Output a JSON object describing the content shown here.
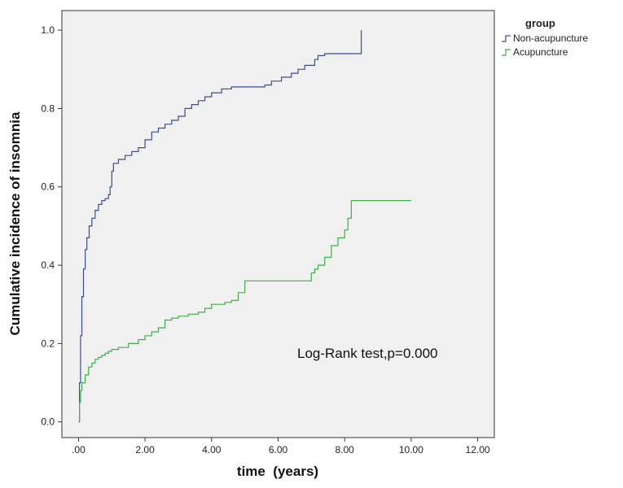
{
  "chart_data": {
    "type": "line",
    "xlabel": "time  (years)",
    "ylabel": "Cumulative incidence of insomnia",
    "xlim": [
      -0.5,
      12.5
    ],
    "ylim": [
      -0.04,
      1.05
    ],
    "x_ticks": [
      0,
      2,
      4,
      6,
      8,
      10,
      12
    ],
    "x_tick_labels": [
      ".00",
      "2.00",
      "4.00",
      "6.00",
      "8.00",
      "10.00",
      "12.00"
    ],
    "y_ticks": [
      0,
      0.2,
      0.4,
      0.6,
      0.8,
      1.0
    ],
    "y_tick_labels": [
      "0.0",
      "0.2",
      "0.4",
      "0.6",
      "0.8",
      "1.0"
    ],
    "grid": false,
    "legend_title": "group",
    "legend_position": "outside-top-right",
    "annotation": "Log-Rank test,p=0.000",
    "series": [
      {
        "name": "Non-acupuncture",
        "color": "#3c4d8e",
        "points": [
          [
            0,
            0
          ],
          [
            0.03,
            0.1
          ],
          [
            0.06,
            0.22
          ],
          [
            0.1,
            0.32
          ],
          [
            0.15,
            0.39
          ],
          [
            0.2,
            0.44
          ],
          [
            0.25,
            0.47
          ],
          [
            0.32,
            0.5
          ],
          [
            0.4,
            0.52
          ],
          [
            0.5,
            0.54
          ],
          [
            0.6,
            0.555
          ],
          [
            0.7,
            0.565
          ],
          [
            0.8,
            0.57
          ],
          [
            0.9,
            0.58
          ],
          [
            0.95,
            0.6
          ],
          [
            1.0,
            0.64
          ],
          [
            1.05,
            0.66
          ],
          [
            1.2,
            0.67
          ],
          [
            1.4,
            0.68
          ],
          [
            1.6,
            0.69
          ],
          [
            1.8,
            0.7
          ],
          [
            2.0,
            0.72
          ],
          [
            2.2,
            0.74
          ],
          [
            2.4,
            0.75
          ],
          [
            2.6,
            0.76
          ],
          [
            2.8,
            0.77
          ],
          [
            3.0,
            0.78
          ],
          [
            3.2,
            0.8
          ],
          [
            3.4,
            0.81
          ],
          [
            3.6,
            0.82
          ],
          [
            3.8,
            0.83
          ],
          [
            4.0,
            0.84
          ],
          [
            4.3,
            0.85
          ],
          [
            4.6,
            0.855
          ],
          [
            5.0,
            0.855
          ],
          [
            5.5,
            0.855
          ],
          [
            5.6,
            0.86
          ],
          [
            5.8,
            0.87
          ],
          [
            6.0,
            0.87
          ],
          [
            6.1,
            0.88
          ],
          [
            6.4,
            0.89
          ],
          [
            6.6,
            0.9
          ],
          [
            6.8,
            0.91
          ],
          [
            7.0,
            0.91
          ],
          [
            7.1,
            0.925
          ],
          [
            7.2,
            0.935
          ],
          [
            7.4,
            0.94
          ],
          [
            8.0,
            0.94
          ],
          [
            8.5,
            0.94
          ],
          [
            8.5,
            1.0
          ]
        ]
      },
      {
        "name": "Acupuncture",
        "color": "#3fae49",
        "points": [
          [
            0,
            0
          ],
          [
            0.03,
            0.05
          ],
          [
            0.06,
            0.08
          ],
          [
            0.1,
            0.1
          ],
          [
            0.2,
            0.12
          ],
          [
            0.3,
            0.14
          ],
          [
            0.4,
            0.15
          ],
          [
            0.5,
            0.16
          ],
          [
            0.6,
            0.165
          ],
          [
            0.7,
            0.17
          ],
          [
            0.8,
            0.175
          ],
          [
            0.9,
            0.18
          ],
          [
            1.0,
            0.185
          ],
          [
            1.2,
            0.19
          ],
          [
            1.5,
            0.2
          ],
          [
            1.8,
            0.21
          ],
          [
            2.0,
            0.22
          ],
          [
            2.2,
            0.23
          ],
          [
            2.4,
            0.24
          ],
          [
            2.6,
            0.26
          ],
          [
            2.8,
            0.265
          ],
          [
            3.0,
            0.27
          ],
          [
            3.3,
            0.275
          ],
          [
            3.6,
            0.28
          ],
          [
            3.8,
            0.29
          ],
          [
            4.0,
            0.3
          ],
          [
            4.4,
            0.305
          ],
          [
            4.6,
            0.31
          ],
          [
            4.8,
            0.33
          ],
          [
            5.0,
            0.36
          ],
          [
            6.5,
            0.36
          ],
          [
            7.0,
            0.36
          ],
          [
            7.0,
            0.38
          ],
          [
            7.1,
            0.39
          ],
          [
            7.2,
            0.4
          ],
          [
            7.4,
            0.42
          ],
          [
            7.6,
            0.45
          ],
          [
            7.8,
            0.47
          ],
          [
            8.0,
            0.49
          ],
          [
            8.1,
            0.52
          ],
          [
            8.2,
            0.565
          ],
          [
            10.0,
            0.565
          ]
        ]
      }
    ]
  }
}
